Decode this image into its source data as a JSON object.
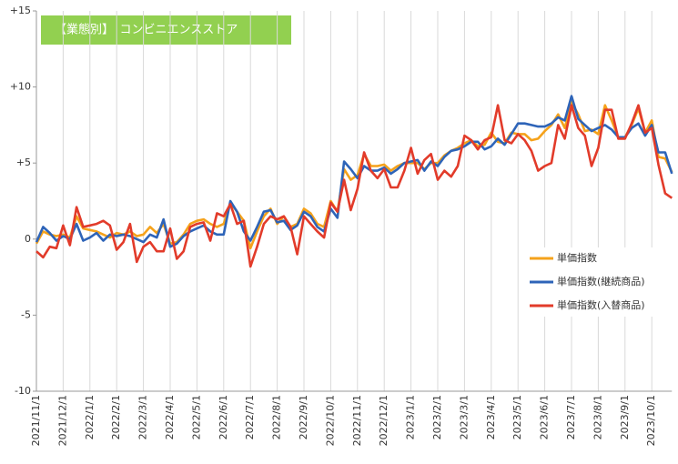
{
  "chart_data": {
    "type": "line",
    "title": "【業態別】　コンビニエンスストア",
    "categories": [
      "2021/11/1",
      null,
      null,
      null,
      "2021/12/1",
      null,
      null,
      null,
      "2022/1/1",
      null,
      null,
      null,
      "2022/2/1",
      null,
      null,
      null,
      "2022/3/1",
      null,
      null,
      null,
      "2022/4/1",
      null,
      null,
      null,
      "2022/5/1",
      null,
      null,
      null,
      "2022/6/1",
      null,
      null,
      null,
      "2022/7/1",
      null,
      null,
      null,
      "2022/8/1",
      null,
      null,
      null,
      "2022/9/1",
      null,
      null,
      null,
      "2022/10/1",
      null,
      null,
      null,
      "2022/11/1",
      null,
      null,
      null,
      "2022/12/1",
      null,
      null,
      null,
      "2023/1/1",
      null,
      null,
      null,
      "2023/2/1",
      null,
      null,
      null,
      "2023/3/1",
      null,
      null,
      null,
      "2023/4/1",
      null,
      null,
      null,
      "2023/5/1",
      null,
      null,
      null,
      "2023/6/1",
      null,
      null,
      null,
      "2023/7/1",
      null,
      null,
      null,
      "2023/8/1",
      null,
      null,
      null,
      "2023/9/1",
      null,
      null,
      null,
      "2023/10/1",
      null,
      null,
      null
    ],
    "series": [
      {
        "name": "単価指数",
        "color": "#f5a21b",
        "values": [
          -0.3,
          0.5,
          0.3,
          0.2,
          0.3,
          0.1,
          1.5,
          0.7,
          0.6,
          0.5,
          0.3,
          0.1,
          0.4,
          0.3,
          0.5,
          0.2,
          0.3,
          0.8,
          0.4,
          1.0,
          -0.3,
          -0.2,
          0.3,
          1.0,
          1.2,
          1.3,
          1.0,
          0.8,
          1.0,
          2.4,
          1.8,
          1.2,
          -0.6,
          0.5,
          1.5,
          2.0,
          1.0,
          1.5,
          0.8,
          1.0,
          2.0,
          1.7,
          1.0,
          0.8,
          2.5,
          1.8,
          4.6,
          3.9,
          4.2,
          5.6,
          4.8,
          4.8,
          4.9,
          4.5,
          4.8,
          5.0,
          5.0,
          5.0,
          4.6,
          5.0,
          5.0,
          5.5,
          5.8,
          6.0,
          6.3,
          6.5,
          6.1,
          6.2,
          7.0,
          6.4,
          6.3,
          7.0,
          6.9,
          6.9,
          6.5,
          6.6,
          7.1,
          7.5,
          8.2,
          7.3,
          9.0,
          8.2,
          7.1,
          7.2,
          6.9,
          8.8,
          7.8,
          6.7,
          6.7,
          7.5,
          8.6,
          7.0,
          7.8,
          5.4,
          5.3,
          4.4
        ]
      },
      {
        "name": "単価指数(継続商品)",
        "color": "#2e64b8",
        "values": [
          -0.2,
          0.8,
          0.4,
          -0.1,
          0.2,
          0.0,
          1.0,
          -0.1,
          0.1,
          0.4,
          -0.1,
          0.3,
          0.2,
          0.3,
          0.2,
          0.0,
          -0.2,
          0.3,
          0.1,
          1.3,
          -0.5,
          -0.3,
          0.2,
          0.5,
          0.7,
          0.9,
          0.5,
          0.3,
          0.3,
          2.5,
          1.8,
          0.5,
          -0.1,
          0.8,
          1.8,
          1.9,
          1.1,
          1.2,
          0.6,
          0.9,
          1.8,
          1.5,
          0.8,
          0.5,
          2.0,
          1.4,
          5.1,
          4.6,
          4.0,
          4.8,
          4.5,
          4.5,
          4.7,
          4.3,
          4.6,
          5.0,
          5.1,
          5.2,
          4.5,
          5.1,
          4.8,
          5.4,
          5.8,
          5.9,
          6.1,
          6.4,
          6.4,
          5.9,
          6.1,
          6.6,
          6.2,
          6.9,
          7.6,
          7.6,
          7.5,
          7.4,
          7.4,
          7.6,
          8.0,
          7.8,
          9.4,
          7.9,
          7.5,
          7.1,
          7.3,
          7.5,
          7.2,
          6.7,
          6.7,
          7.3,
          7.6,
          6.8,
          7.5,
          5.7,
          5.7,
          4.3
        ]
      },
      {
        "name": "単価指数(入替商品)",
        "color": "#e23b2a",
        "values": [
          -0.8,
          -1.2,
          -0.5,
          -0.6,
          0.9,
          -0.4,
          2.1,
          0.8,
          0.9,
          1.0,
          1.2,
          0.9,
          -0.7,
          -0.2,
          1.0,
          -1.5,
          -0.5,
          -0.2,
          -0.8,
          -0.8,
          0.7,
          -1.3,
          -0.8,
          0.8,
          1.0,
          1.1,
          -0.1,
          1.7,
          1.5,
          2.3,
          1.0,
          1.2,
          -1.8,
          -0.5,
          1.0,
          1.5,
          1.3,
          1.5,
          0.8,
          -1.0,
          1.5,
          1.0,
          0.5,
          0.1,
          2.4,
          1.8,
          3.9,
          1.9,
          3.3,
          5.7,
          4.5,
          4.0,
          4.6,
          3.4,
          3.4,
          4.5,
          6.0,
          4.3,
          5.2,
          5.6,
          3.9,
          4.5,
          4.1,
          4.8,
          6.8,
          6.5,
          5.9,
          6.5,
          6.7,
          8.8,
          6.5,
          6.3,
          6.9,
          6.5,
          5.8,
          4.5,
          4.8,
          5.0,
          7.5,
          6.6,
          8.8,
          7.3,
          6.8,
          4.8,
          6.0,
          8.5,
          8.5,
          6.6,
          6.6,
          7.6,
          8.8,
          7.0,
          7.3,
          4.9,
          3.0,
          2.7
        ]
      }
    ],
    "ylim": [
      -10,
      15
    ],
    "yticks": [
      -10,
      -5,
      0,
      {
        "value": 5,
        "label": "+5"
      },
      {
        "value": 10,
        "label": "+10"
      },
      {
        "value": 15,
        "label": "+15"
      }
    ],
    "grid": "x",
    "legend": "right"
  }
}
